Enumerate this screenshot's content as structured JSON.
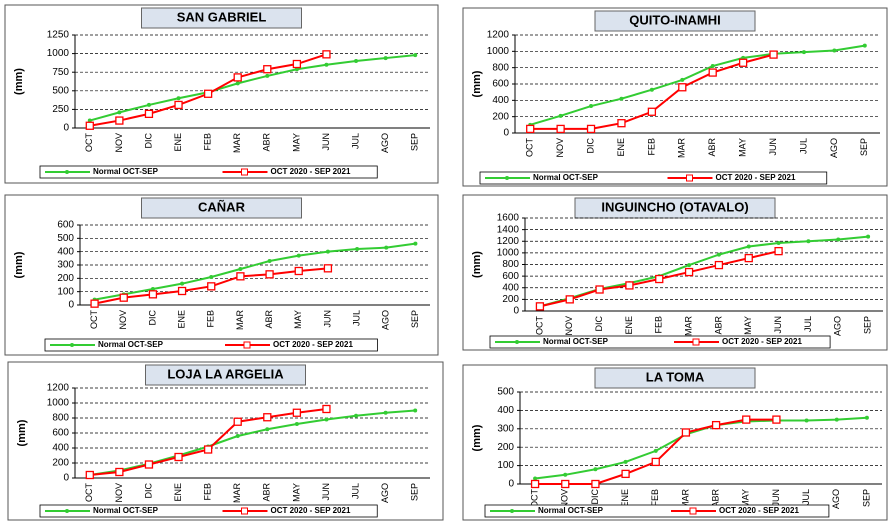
{
  "chart_data": [
    {
      "type": "line",
      "title": "SAN GABRIEL",
      "y_label": "(mm)",
      "categories": [
        "OCT",
        "NOV",
        "DIC",
        "ENE",
        "FEB",
        "MAR",
        "ABR",
        "MAY",
        "JUN",
        "JUL",
        "AGO",
        "SEP"
      ],
      "ylim": [
        0,
        1250
      ],
      "yticks": [
        0,
        250,
        500,
        750,
        1000,
        1250
      ],
      "grid": true,
      "series": [
        {
          "name": "Normal OCT-SEP",
          "color": "#33cc33",
          "values": [
            100,
            210,
            310,
            400,
            480,
            600,
            700,
            790,
            850,
            900,
            940,
            980
          ]
        },
        {
          "name": "OCT 2020 - SEP 2021",
          "color": "#ff0000",
          "values": [
            30,
            100,
            190,
            310,
            460,
            680,
            790,
            860,
            990,
            null,
            null,
            null
          ]
        }
      ]
    },
    {
      "type": "line",
      "title": "QUITO-INAMHI",
      "y_label": "(mm)",
      "categories": [
        "OCT",
        "NOV",
        "DIC",
        "ENE",
        "FEB",
        "MAR",
        "ABR",
        "MAY",
        "JUN",
        "JUL",
        "AGO",
        "SEP"
      ],
      "ylim": [
        0,
        1200
      ],
      "yticks": [
        0,
        200,
        400,
        600,
        800,
        1000,
        1200
      ],
      "grid": true,
      "series": [
        {
          "name": "Normal OCT-SEP",
          "color": "#33cc33",
          "values": [
            100,
            210,
            330,
            420,
            530,
            650,
            820,
            920,
            970,
            990,
            1010,
            1070
          ]
        },
        {
          "name": "OCT 2020 - SEP 2021",
          "color": "#ff0000",
          "values": [
            50,
            50,
            50,
            120,
            260,
            560,
            740,
            860,
            960,
            null,
            null,
            null
          ]
        }
      ]
    },
    {
      "type": "line",
      "title": "CAÑAR",
      "y_label": "(mm)",
      "categories": [
        "OCT",
        "NOV",
        "DIC",
        "ENE",
        "FEB",
        "MAR",
        "ABR",
        "MAY",
        "JUN",
        "JUL",
        "AGO",
        "SEP"
      ],
      "ylim": [
        0,
        600
      ],
      "yticks": [
        0,
        100,
        200,
        300,
        400,
        500,
        600
      ],
      "grid": true,
      "series": [
        {
          "name": "Normal OCT-SEP",
          "color": "#33cc33",
          "values": [
            40,
            80,
            120,
            160,
            210,
            270,
            330,
            370,
            400,
            420,
            430,
            460
          ]
        },
        {
          "name": "OCT 2020 - SEP 2021",
          "color": "#ff0000",
          "values": [
            10,
            55,
            80,
            105,
            140,
            215,
            230,
            255,
            275,
            null,
            null,
            null
          ]
        }
      ]
    },
    {
      "type": "line",
      "title": "INGUINCHO  (OTAVALO)",
      "y_label": "(mm)",
      "categories": [
        "OCT",
        "NOV",
        "DIC",
        "ENE",
        "FEB",
        "MAR",
        "ABR",
        "MAY",
        "JUN",
        "JUL",
        "AGO",
        "SEP"
      ],
      "ylim": [
        0,
        1600
      ],
      "yticks": [
        0,
        200,
        400,
        600,
        800,
        1000,
        1200,
        1400,
        1600
      ],
      "grid": true,
      "series": [
        {
          "name": "Normal OCT-SEP",
          "color": "#33cc33",
          "values": [
            80,
            220,
            380,
            480,
            600,
            790,
            970,
            1110,
            1170,
            1200,
            1230,
            1280
          ]
        },
        {
          "name": "OCT 2020 - SEP 2021",
          "color": "#ff0000",
          "values": [
            80,
            200,
            370,
            440,
            550,
            670,
            790,
            910,
            1030,
            null,
            null,
            null
          ]
        }
      ]
    },
    {
      "type": "line",
      "title": "LOJA LA ARGELIA",
      "y_label": "(mm)",
      "categories": [
        "OCT",
        "NOV",
        "DIC",
        "ENE",
        "FEB",
        "MAR",
        "ABR",
        "MAY",
        "JUN",
        "JUL",
        "AGO",
        "SEP"
      ],
      "ylim": [
        0,
        1200
      ],
      "yticks": [
        0,
        200,
        400,
        600,
        800,
        1000,
        1200
      ],
      "grid": true,
      "series": [
        {
          "name": "Normal OCT-SEP",
          "color": "#33cc33",
          "values": [
            40,
            100,
            190,
            300,
            420,
            560,
            650,
            720,
            780,
            830,
            870,
            900
          ]
        },
        {
          "name": "OCT 2020 - SEP 2021",
          "color": "#ff0000",
          "values": [
            40,
            80,
            180,
            280,
            380,
            750,
            810,
            870,
            920,
            null,
            null,
            null
          ]
        }
      ]
    },
    {
      "type": "line",
      "title": "LA TOMA",
      "y_label": "(mm)",
      "categories": [
        "OCT",
        "NOV",
        "DIC",
        "ENE",
        "FEB",
        "MAR",
        "ABR",
        "MAY",
        "JUN",
        "JUL",
        "AGO",
        "SEP"
      ],
      "ylim": [
        0,
        500
      ],
      "yticks": [
        0,
        100,
        200,
        300,
        400,
        500
      ],
      "grid": true,
      "series": [
        {
          "name": "Normal OCT-SEP",
          "color": "#33cc33",
          "values": [
            30,
            50,
            80,
            120,
            180,
            270,
            320,
            340,
            345,
            345,
            350,
            360
          ]
        },
        {
          "name": "OCT 2020 - SEP 2021",
          "color": "#ff0000",
          "values": [
            0,
            0,
            0,
            55,
            120,
            280,
            320,
            350,
            350,
            null,
            null,
            null
          ]
        }
      ]
    }
  ]
}
